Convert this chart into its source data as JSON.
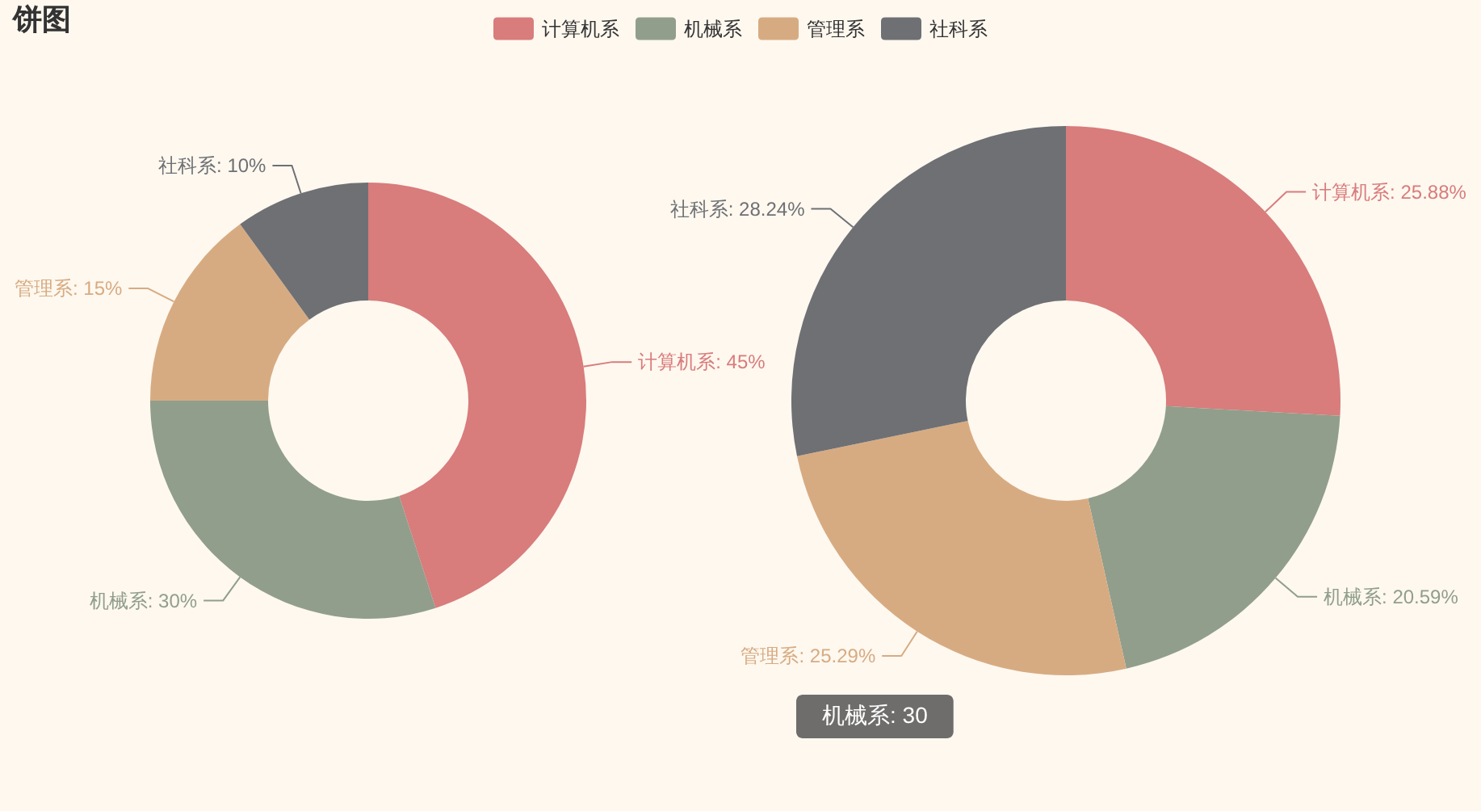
{
  "chart_data": [
    {
      "type": "donut",
      "title": "饼图",
      "categories": [
        "计算机系",
        "机械系",
        "管理系",
        "社科系"
      ],
      "values": [
        45,
        30,
        15,
        10
      ],
      "colors": [
        "#d87c7c",
        "#919e8b",
        "#d7ab82",
        "#6e7074"
      ],
      "value_labels": [
        "计算机系: 45%",
        "机械系: 30%",
        "管理系: 15%",
        "社科系: 10%"
      ],
      "annotations": [
        "机械系: 30"
      ],
      "legend": "top"
    },
    {
      "type": "donut",
      "categories": [
        "计算机系",
        "机械系",
        "管理系",
        "社科系"
      ],
      "values": [
        25.88,
        20.59,
        25.29,
        28.24
      ],
      "colors": [
        "#d87c7c",
        "#919e8b",
        "#d7ab82",
        "#6e7074"
      ],
      "value_labels": [
        "25.88%",
        "20.59%",
        "25.29%",
        "28.24%"
      ]
    }
  ]
}
